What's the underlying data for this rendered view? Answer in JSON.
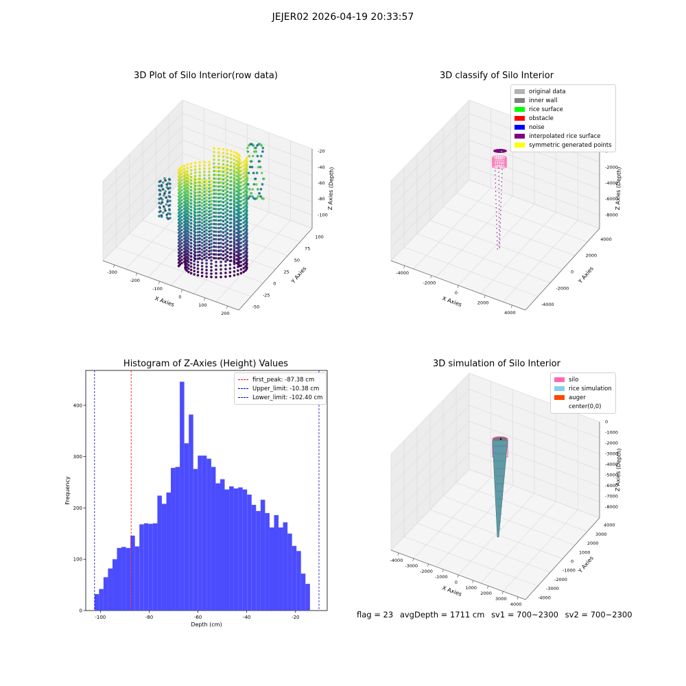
{
  "figure_title": "JEJER02 2026-04-19 20:33:57",
  "status": {
    "flag": "flag = 23",
    "avg_depth": "avgDepth = 1711 cm",
    "sv1": "sv1 = 700~2300",
    "sv2": "sv2 = 700~2300"
  },
  "colors": {
    "viridis": [
      "#440154",
      "#3b528b",
      "#21918c",
      "#5ec962",
      "#fde725"
    ],
    "original": "#b2b2b2",
    "inner_wall": "#808080",
    "rice_surface": "#00ff00",
    "obstacle": "#ff0000",
    "noise": "#0000ff",
    "interpolated": "#800080",
    "symmetric": "#ffff00",
    "silo": "#ff69b4",
    "rice_sim": "#87ceeb",
    "auger": "#ff4500",
    "hist_bar": "#4c4cff",
    "peak_line": "#ff0000",
    "limit_line": "#0000cc"
  },
  "chart_data": [
    {
      "type": "scatter",
      "projection": "3d",
      "title": "3D Plot of Silo Interior(row data)",
      "xlabel": "X Axies",
      "ylabel": "Y Axies",
      "zlabel": "Z Axies (Depth)",
      "xticks": [
        "-300",
        "-200",
        "-100",
        "0",
        "100",
        "200"
      ],
      "yticks": [
        "-50",
        "-25",
        "0",
        "25",
        "50",
        "75",
        "100"
      ],
      "zticks": [
        "-20",
        "-40",
        "-60",
        "-80",
        "-100"
      ],
      "xlim": [
        -330,
        230
      ],
      "ylim": [
        -60,
        110
      ],
      "zlim": [
        -105,
        -10
      ],
      "colormap": "viridis"
    },
    {
      "type": "scatter",
      "projection": "3d",
      "title": "3D classify of Silo Interior",
      "xlabel": "X Axies",
      "ylabel": "Y Axies",
      "zlabel": "Z Axies (Depth)",
      "xticks": [
        "-4000",
        "-2000",
        "0",
        "2000",
        "4000"
      ],
      "yticks": [
        "-4000",
        "-2000",
        "0",
        "2000",
        "4000"
      ],
      "zticks": [
        "0",
        "-2000",
        "-4000",
        "-6000",
        "-8000"
      ],
      "legend": [
        "original data",
        "inner wall",
        "rice surface",
        "obstacle",
        "noise",
        "interpolated rice surface",
        "symmetric generated points"
      ],
      "legend_loc": "upper right"
    },
    {
      "type": "bar",
      "title": "Histogram of Z-Axies (Height) Values",
      "xlabel": "Depth (cm)",
      "ylabel": "Frequency",
      "xticks": [
        "-100",
        "-80",
        "-60",
        "-40",
        "-20"
      ],
      "yticks": [
        "0",
        "100",
        "200",
        "300",
        "400"
      ],
      "xlim": [
        -106,
        -7
      ],
      "ylim": [
        0,
        468
      ],
      "bin_start": -102.4,
      "bin_width": 1.84,
      "values": [
        32,
        42,
        65,
        82,
        100,
        122,
        124,
        122,
        146,
        125,
        168,
        170,
        169,
        170,
        224,
        208,
        230,
        278,
        280,
        446,
        326,
        382,
        276,
        302,
        302,
        296,
        280,
        248,
        256,
        236,
        242,
        238,
        240,
        236,
        226,
        206,
        194,
        216,
        190,
        162,
        186,
        162,
        172,
        150,
        126,
        116,
        72,
        52
      ],
      "lines": [
        {
          "label": "first_peak: -87.38 cm",
          "x": -87.38,
          "color": "red"
        },
        {
          "label": "Upper_limit: -10.38 cm",
          "x": -10.38,
          "color": "blue"
        },
        {
          "label": "Lower_limit: -102.40 cm",
          "x": -102.4,
          "color": "blue"
        }
      ],
      "legend_loc": "upper right"
    },
    {
      "type": "surface",
      "projection": "3d",
      "title": "3D simulation of Silo Interior",
      "xlabel": "X Axies",
      "ylabel": "Y Axies",
      "zlabel": "Z Axies (Depth)",
      "xticks": [
        "-4000",
        "-3000",
        "-2000",
        "-1000",
        "0",
        "1000",
        "2000",
        "3000",
        "4000"
      ],
      "yticks": [
        "-4000",
        "-3000",
        "-2000",
        "-1000",
        "0",
        "1000",
        "2000",
        "3000",
        "4000"
      ],
      "zticks": [
        "0",
        "-1000",
        "-2000",
        "-3000",
        "-4000",
        "-5000",
        "-6000",
        "-7000",
        "-8000"
      ],
      "legend": [
        "silo",
        "rice simulation",
        "auger",
        "center(0,0)"
      ],
      "legend_loc": "upper right"
    }
  ]
}
